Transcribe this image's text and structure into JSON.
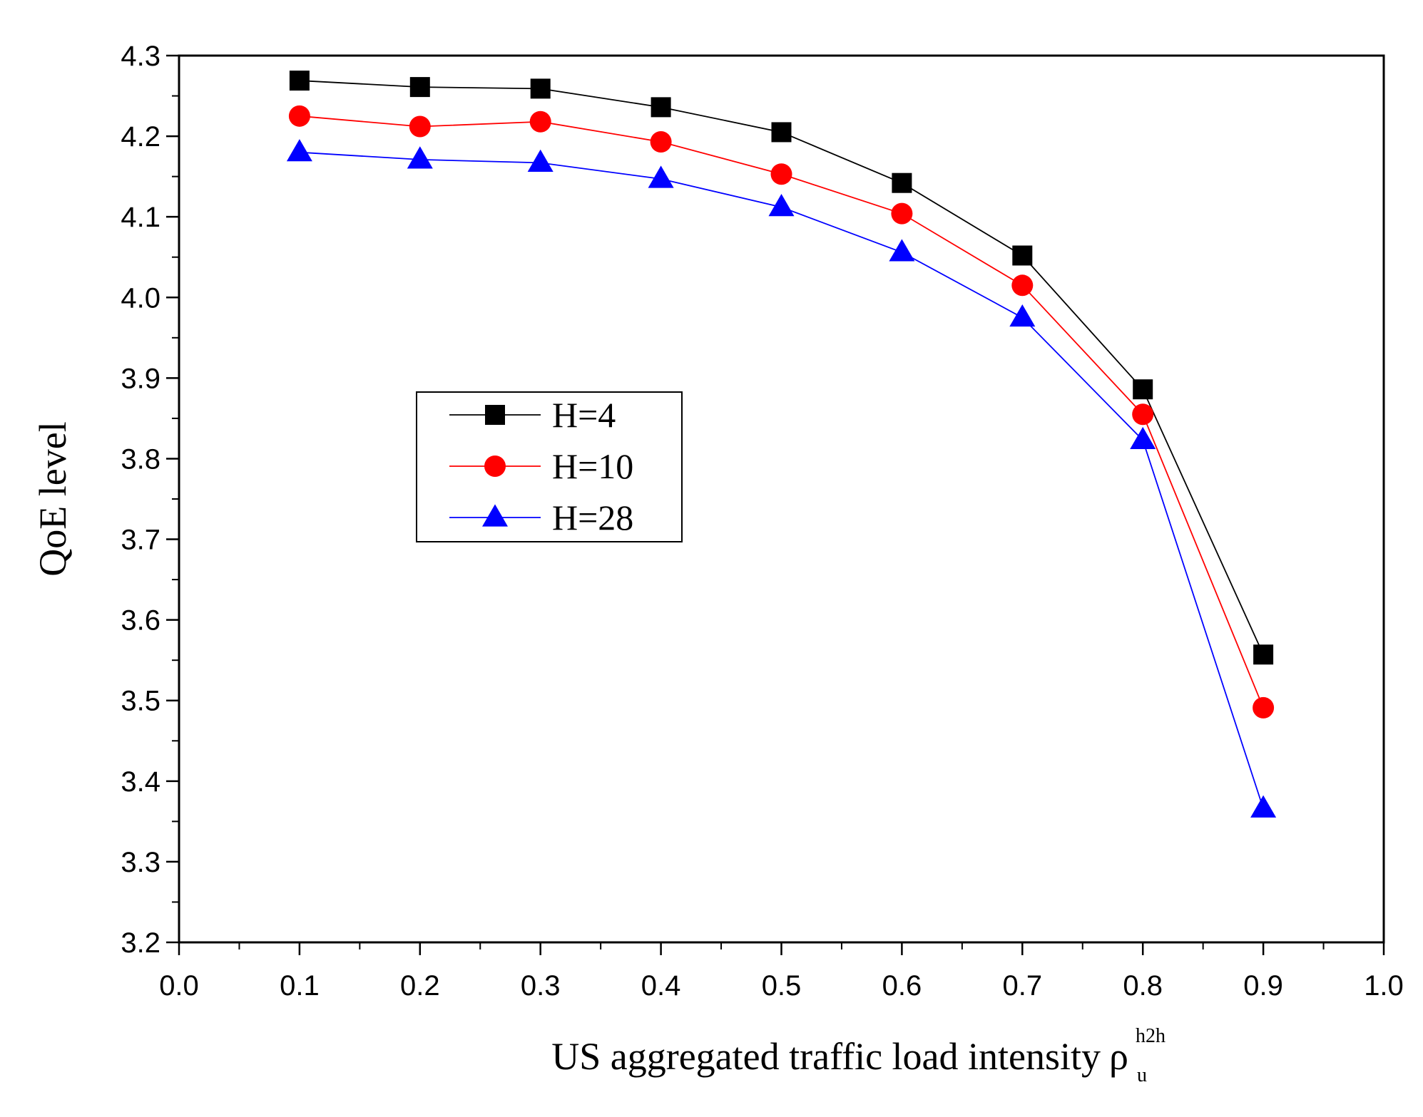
{
  "chart_data": {
    "type": "line",
    "title": "",
    "xlabel": "US aggregated traffic  load intensity",
    "xlabel_symbol": "ρ",
    "xlabel_superscript": "h2h",
    "xlabel_subscript": "u",
    "ylabel": "QoE level",
    "xlim": [
      0.0,
      1.0
    ],
    "ylim": [
      3.2,
      4.3
    ],
    "x_ticks": [
      "0.0",
      "0.1",
      "0.2",
      "0.3",
      "0.4",
      "0.5",
      "0.6",
      "0.7",
      "0.8",
      "0.9",
      "1.0"
    ],
    "y_ticks": [
      "3.2",
      "3.3",
      "3.4",
      "3.5",
      "3.6",
      "3.7",
      "3.8",
      "3.9",
      "4.0",
      "4.1",
      "4.2",
      "4.3"
    ],
    "x": [
      0.1,
      0.2,
      0.3,
      0.4,
      0.5,
      0.6,
      0.7,
      0.8,
      0.9
    ],
    "grid": false,
    "legend_position": "center-left",
    "series": [
      {
        "name": "H=4",
        "color": "#000000",
        "marker": "square",
        "values": [
          4.269,
          4.261,
          4.259,
          4.236,
          4.205,
          4.142,
          4.052,
          3.886,
          3.557
        ]
      },
      {
        "name": "H=10",
        "color": "#ff0000",
        "marker": "circle",
        "values": [
          4.225,
          4.212,
          4.218,
          4.193,
          4.153,
          4.104,
          4.015,
          3.855,
          3.491
        ]
      },
      {
        "name": "H=28",
        "color": "#0000ff",
        "marker": "triangle",
        "values": [
          4.18,
          4.171,
          4.167,
          4.147,
          4.112,
          4.056,
          3.975,
          3.823,
          3.366
        ]
      }
    ]
  }
}
